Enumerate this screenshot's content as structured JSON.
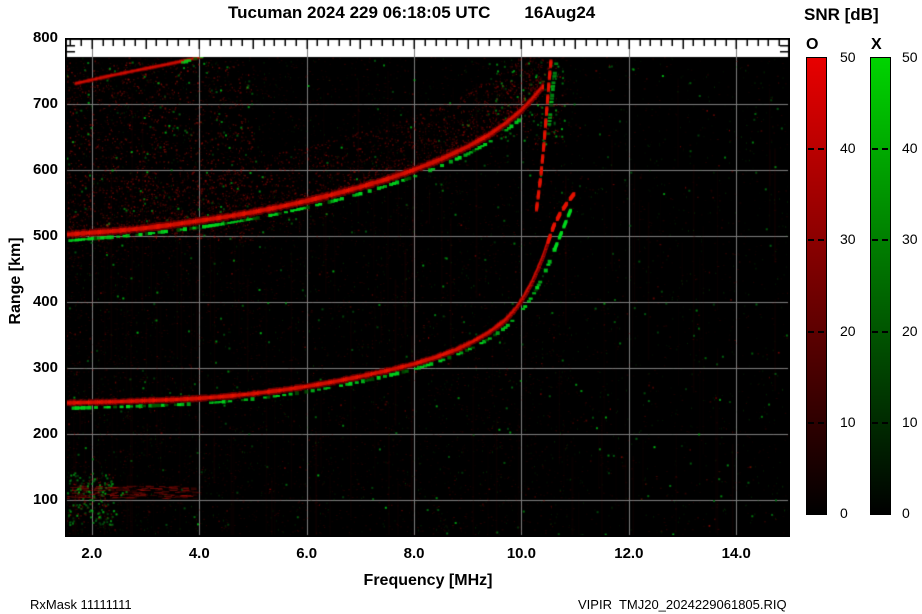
{
  "title": {
    "main": "Tucuman 2024 229 06:18:05 UTC",
    "date": "16Aug24"
  },
  "colorbar": {
    "title": "SNR [dB]",
    "o_label": "O",
    "x_label": "X",
    "tick_labels": [
      "50",
      "40",
      "30",
      "20",
      "10",
      "0"
    ],
    "tick_values": [
      50,
      40,
      30,
      20,
      10,
      0
    ],
    "o_top_color": "#e80000",
    "x_top_color": "#00d400",
    "bottom_color": "#000000"
  },
  "axes": {
    "y_title": "Range [km]",
    "x_title": "Frequency [MHz]",
    "y_ticks": [
      "800",
      "700",
      "600",
      "500",
      "400",
      "300",
      "200",
      "100"
    ],
    "y_tick_values": [
      800,
      700,
      600,
      500,
      400,
      300,
      200,
      100
    ],
    "x_ticks": [
      "2.0",
      "4.0",
      "6.0",
      "8.0",
      "10.0",
      "12.0",
      "14.0"
    ],
    "x_tick_values": [
      2,
      4,
      6,
      8,
      10,
      12,
      14
    ]
  },
  "footer": {
    "left": "RxMask 11111111",
    "right": "VIPIR  TMJ20_2024229061805.RIQ"
  },
  "chart_data": {
    "type": "heatmap",
    "title": "Tucuman 2024 229 06:18:05 UTC 16Aug24",
    "xlabel": "Frequency [MHz]",
    "ylabel": "Range [km]",
    "xlim": [
      1.5,
      15.05
    ],
    "ylim": [
      44,
      800
    ],
    "grid": true,
    "background": "#000000",
    "grid_color": "#7d7d7d",
    "colorbar": {
      "label": "SNR [dB]",
      "range_db": [
        0,
        50
      ],
      "o_mode_color": "red",
      "x_mode_color": "green"
    },
    "traces": [
      {
        "name": "F-layer O-mode trace",
        "color": "red",
        "style": "solid",
        "width": 6,
        "points": [
          [
            1.5,
            247
          ],
          [
            2,
            248
          ],
          [
            2.5,
            249
          ],
          [
            3,
            250.5
          ],
          [
            3.5,
            252
          ],
          [
            4,
            254
          ],
          [
            4.5,
            257
          ],
          [
            5,
            261
          ],
          [
            5.5,
            266
          ],
          [
            6,
            272
          ],
          [
            6.5,
            279
          ],
          [
            7,
            287
          ],
          [
            7.5,
            296
          ],
          [
            8,
            306
          ],
          [
            8.4,
            316
          ],
          [
            8.8,
            328
          ],
          [
            9.1,
            340
          ],
          [
            9.4,
            354
          ],
          [
            9.7,
            372
          ],
          [
            9.9,
            390
          ],
          [
            10.05,
            408
          ],
          [
            10.2,
            430
          ],
          [
            10.32,
            452
          ],
          [
            10.42,
            472
          ],
          [
            10.5,
            492
          ]
        ]
      },
      {
        "name": "F-layer O-mode asymptote",
        "color": "red",
        "style": "dashed",
        "width": 4,
        "points": [
          [
            10.5,
            492
          ],
          [
            10.6,
            515
          ],
          [
            10.72,
            534
          ],
          [
            10.85,
            550
          ],
          [
            11.0,
            566
          ]
        ]
      },
      {
        "name": "F-layer X-mode trace",
        "color": "green",
        "style": "dotted",
        "width": 3,
        "points": [
          [
            1.6,
            239
          ],
          [
            2,
            240
          ],
          [
            2.5,
            241
          ],
          [
            3,
            242.5
          ],
          [
            3.5,
            244
          ],
          [
            4,
            246
          ],
          [
            4.5,
            249
          ],
          [
            5,
            253
          ],
          [
            5.5,
            258
          ],
          [
            6,
            264
          ],
          [
            6.5,
            271
          ],
          [
            7,
            279
          ],
          [
            7.5,
            288
          ],
          [
            8,
            298
          ],
          [
            8.4,
            308
          ],
          [
            8.8,
            320
          ],
          [
            9.1,
            331
          ],
          [
            9.4,
            344
          ],
          [
            9.7,
            361
          ],
          [
            9.9,
            377
          ],
          [
            10.1,
            396
          ],
          [
            10.25,
            415
          ],
          [
            10.4,
            438
          ],
          [
            10.52,
            460
          ],
          [
            10.62,
            480
          ]
        ]
      },
      {
        "name": "F-layer X-mode asymptote",
        "color": "green",
        "style": "dashed",
        "width": 3,
        "points": [
          [
            10.62,
            480
          ],
          [
            10.72,
            500
          ],
          [
            10.82,
            520
          ],
          [
            10.92,
            540
          ]
        ]
      },
      {
        "name": "second-hop O-mode trace",
        "color": "red",
        "style": "solid",
        "width": 7,
        "spread": {
          "above": 52,
          "below": 24,
          "f_end": 10.45
        },
        "points": [
          [
            1.5,
            502
          ],
          [
            2,
            505
          ],
          [
            2.5,
            508
          ],
          [
            3,
            512
          ],
          [
            3.5,
            517
          ],
          [
            4,
            523
          ],
          [
            4.5,
            529
          ],
          [
            5,
            536
          ],
          [
            5.5,
            544
          ],
          [
            6,
            553
          ],
          [
            6.5,
            563
          ],
          [
            7,
            574
          ],
          [
            7.5,
            586
          ],
          [
            8,
            600
          ],
          [
            8.5,
            616
          ],
          [
            9,
            635
          ],
          [
            9.4,
            653
          ],
          [
            9.7,
            670
          ],
          [
            10,
            690
          ],
          [
            10.2,
            707
          ],
          [
            10.4,
            726
          ]
        ]
      },
      {
        "name": "second-hop X-mode edge",
        "color": "green",
        "style": "dotted",
        "width": 3,
        "points": [
          [
            1.6,
            493
          ],
          [
            2,
            496
          ],
          [
            2.5,
            499
          ],
          [
            3,
            503
          ],
          [
            3.5,
            508
          ],
          [
            4,
            513
          ],
          [
            4.5,
            519
          ],
          [
            5,
            526
          ],
          [
            5.5,
            534
          ],
          [
            6,
            543
          ],
          [
            6.5,
            553
          ],
          [
            7,
            564
          ],
          [
            7.5,
            576
          ],
          [
            8,
            590
          ],
          [
            8.5,
            606
          ],
          [
            9,
            624
          ],
          [
            9.4,
            642
          ],
          [
            9.7,
            659
          ],
          [
            10,
            678
          ]
        ]
      },
      {
        "name": "top-left oblique echo",
        "color": "red",
        "style": "solid",
        "width": 4,
        "alpha": 0.75,
        "points": [
          [
            1.7,
            731
          ],
          [
            2.3,
            742
          ],
          [
            2.9,
            752
          ],
          [
            3.4,
            760
          ],
          [
            3.8,
            767
          ],
          [
            4.05,
            772
          ]
        ]
      },
      {
        "name": "top-left oblique echo X tip",
        "color": "green",
        "style": "dotted",
        "width": 3,
        "alpha": 0.9,
        "points": [
          [
            3.7,
            763
          ],
          [
            3.9,
            768
          ],
          [
            4.05,
            772
          ]
        ]
      },
      {
        "name": "second-hop asymptote",
        "color": "red",
        "style": "dashed",
        "width": 4,
        "alpha": 0.8,
        "points": [
          [
            10.28,
            540
          ],
          [
            10.36,
            590
          ],
          [
            10.42,
            640
          ],
          [
            10.47,
            690
          ],
          [
            10.52,
            740
          ],
          [
            10.55,
            765
          ]
        ]
      },
      {
        "name": "second-hop asymptote X",
        "color": "green",
        "style": "dotted",
        "width": 3,
        "alpha": 0.8,
        "points": [
          [
            10.5,
            655
          ],
          [
            10.55,
            695
          ],
          [
            10.6,
            735
          ],
          [
            10.65,
            762
          ]
        ]
      }
    ],
    "noise_regions": [
      {
        "name": "bottom-left-cluster",
        "f": [
          1.5,
          2.4
        ],
        "km": [
          62,
          142
        ],
        "green": 130,
        "red": 90
      },
      {
        "name": "bottom-left-streaks",
        "f": [
          1.5,
          3.9
        ],
        "km": [
          103,
          122
        ],
        "green": 10,
        "red": 160
      },
      {
        "name": "upper-left-spread",
        "f": [
          1.5,
          5.0
        ],
        "km": [
          495,
          765
        ],
        "red": 1100,
        "green": 90
      },
      {
        "name": "critical-freq-top-green",
        "f": [
          9.5,
          10.8
        ],
        "km": [
          640,
          765
        ],
        "red": 120,
        "green": 90
      }
    ],
    "noise": {
      "seed": 7,
      "dim_red": 8000,
      "dim_green": 2200,
      "bright_green_blocks": 300,
      "bright_red": 300,
      "streak_columns": 120
    }
  }
}
